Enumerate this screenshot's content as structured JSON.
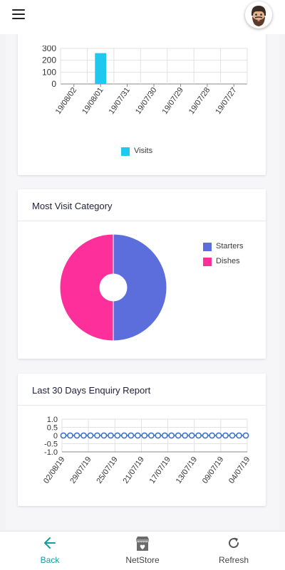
{
  "header": {
    "menu_icon": "hamburger-icon",
    "avatar_icon": "bearded-man-avatar"
  },
  "cards": {
    "visits": {
      "title": "",
      "legend": [
        {
          "label": "Visits",
          "color": "#1ec8ee"
        }
      ]
    },
    "category": {
      "title": "Most Visit Category",
      "legend": [
        {
          "label": "Starters",
          "color": "#5b6edc"
        },
        {
          "label": "Dishes",
          "color": "#fc2f9b"
        }
      ]
    },
    "enquiry": {
      "title": "Last 30 Days Enquiry Report"
    }
  },
  "chart_data": [
    {
      "type": "bar",
      "categories": [
        "19/08/02",
        "19/08/01",
        "19/07/31",
        "19/07/30",
        "19/07/29",
        "19/07/28",
        "19/07/27"
      ],
      "series": [
        {
          "name": "Visits",
          "values": [
            0,
            260,
            0,
            0,
            0,
            0,
            0
          ],
          "color": "#1ec8ee"
        }
      ],
      "yticks": [
        0,
        100,
        200,
        300
      ],
      "ylim": [
        0,
        300
      ],
      "grid": true,
      "legend": "bottom"
    },
    {
      "type": "pie",
      "subtype": "doughnut",
      "title": "Most Visit Category",
      "labels": [
        "Starters",
        "Dishes"
      ],
      "values": [
        50,
        50
      ],
      "colors": [
        "#5b6edc",
        "#fc2f9b"
      ],
      "legend": "right"
    },
    {
      "type": "line",
      "title": "Last 30 Days Enquiry Report",
      "x_tick_labels": [
        "02/08/19",
        "29/07/19",
        "25/07/19",
        "21/07/19",
        "17/07/19",
        "13/07/19",
        "09/07/19",
        "04/07/19"
      ],
      "point_count": 28,
      "values": [
        0,
        0,
        0,
        0,
        0,
        0,
        0,
        0,
        0,
        0,
        0,
        0,
        0,
        0,
        0,
        0,
        0,
        0,
        0,
        0,
        0,
        0,
        0,
        0,
        0,
        0,
        0,
        0
      ],
      "yticks": [
        "1.0",
        "0.5",
        "0",
        "-0.5",
        "-1.0"
      ],
      "ylim": [
        -1,
        1
      ],
      "color": "#3f73c4",
      "grid": true
    }
  ],
  "nav": {
    "back": {
      "label": "Back",
      "icon": "arrow-left-icon",
      "color": "#179aa0"
    },
    "netstore": {
      "label": "NetStore",
      "icon": "store-icon"
    },
    "refresh": {
      "label": "Refresh",
      "icon": "refresh-icon"
    }
  }
}
